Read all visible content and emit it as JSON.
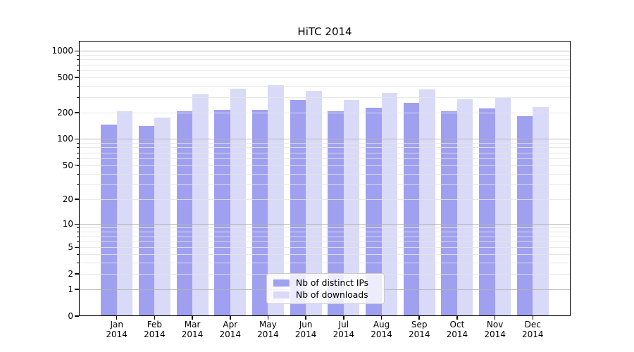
{
  "title": "HiTC 2014",
  "chart_data": {
    "type": "bar",
    "title": "HiTC 2014",
    "categories": [
      "Jan",
      "Feb",
      "Mar",
      "Apr",
      "May",
      "Jun",
      "Jul",
      "Aug",
      "Sep",
      "Oct",
      "Nov",
      "Dec"
    ],
    "x_sublabel": "2014",
    "series": [
      {
        "name": "Nb of distinct IPs",
        "color": "#a0a0f0",
        "values": [
          145,
          140,
          205,
          215,
          215,
          280,
          207,
          225,
          258,
          205,
          224,
          183
        ]
      },
      {
        "name": "Nb of downloads",
        "color": "#d9d9f8",
        "values": [
          207,
          176,
          324,
          371,
          410,
          354,
          280,
          333,
          369,
          285,
          294,
          231
        ]
      }
    ],
    "yscale": "log(value+1)",
    "ylim": [
      0,
      1300
    ],
    "yticks": [
      0,
      1,
      2,
      5,
      10,
      20,
      50,
      100,
      200,
      500,
      1000
    ],
    "ytick_labels": [
      "0",
      "1",
      "2",
      "5",
      "10",
      "20",
      "50",
      "100",
      "200",
      "500",
      "1000"
    ],
    "grid": true,
    "legend_position": "lower center"
  },
  "colors": {
    "bar_ips": "#a0a0f0",
    "bar_downloads": "#d9d9f8",
    "grid_major": "#b2b2b2",
    "grid_minor": "#e4e4e4",
    "spine": "#000000",
    "legend_border": "#cccccc"
  }
}
